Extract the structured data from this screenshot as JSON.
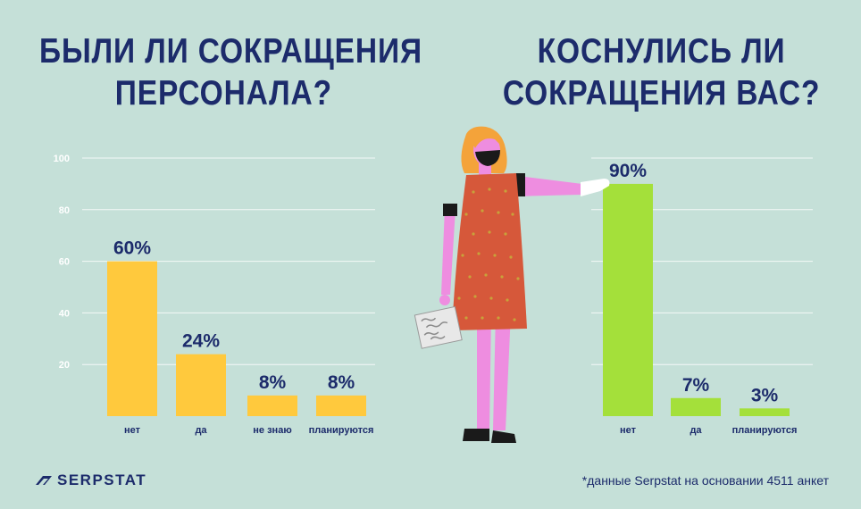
{
  "titles": {
    "left_line1": "БЫЛИ ЛИ СОКРАЩЕНИЯ",
    "left_line2": "ПЕРСОНАЛА?",
    "right_line1": "КОСНУЛИСЬ ЛИ",
    "right_line2": "СОКРАЩЕНИЯ ВАС?"
  },
  "chart_data": [
    {
      "type": "bar",
      "title": "БЫЛИ ЛИ СОКРАЩЕНИЯ ПЕРСОНАЛА?",
      "categories": [
        "нет",
        "да",
        "не знаю",
        "планируются"
      ],
      "values": [
        60,
        24,
        8,
        8
      ],
      "labels": [
        "60%",
        "24%",
        "8%",
        "8%"
      ],
      "yticks": [
        20,
        40,
        60,
        80,
        100
      ],
      "ylim": [
        0,
        100
      ],
      "grid": true,
      "color": "#ffc93d"
    },
    {
      "type": "bar",
      "title": "КОСНУЛИСЬ ЛИ СОКРАЩЕНИЯ ВАС?",
      "categories": [
        "нет",
        "да",
        "планируются"
      ],
      "values": [
        90,
        7,
        3
      ],
      "labels": [
        "90%",
        "7%",
        "3%"
      ],
      "ylim": [
        0,
        100
      ],
      "grid": true,
      "color": "#a4e03a"
    }
  ],
  "logo": {
    "text": "SERPSTAT"
  },
  "footnote": "*данные Serpstat на основании 4511 анкет"
}
